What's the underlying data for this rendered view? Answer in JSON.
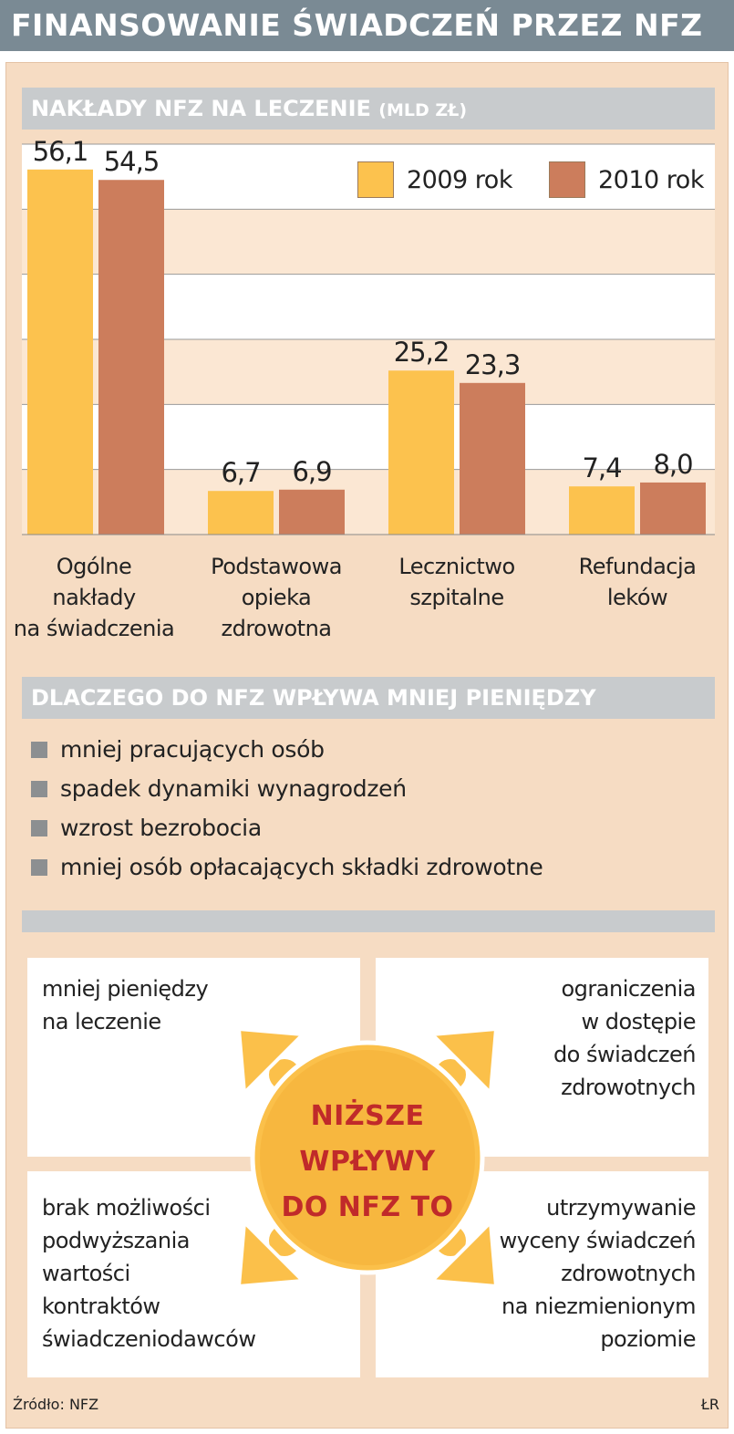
{
  "title": "FINANSOWANIE ŚWIADCZEŃ PRZEZ NFZ",
  "chart_section": {
    "heading": "NAKŁADY NFZ NA LECZENIE",
    "unit": "(MLD ZŁ)"
  },
  "legend": {
    "series_2009": "2009 rok",
    "series_2010": "2010 rok"
  },
  "colors": {
    "banner": "#7a8a94",
    "series_2009": "#fcc24e",
    "series_2010": "#cc7d5c",
    "accent_text": "#c02a2a",
    "arrow": "#fbc04a"
  },
  "chart_data": {
    "type": "bar",
    "title": "NAKŁADY NFZ NA LECZENIE (MLD ZŁ)",
    "xlabel": "",
    "ylabel": "",
    "ylim": [
      0,
      60
    ],
    "grid": true,
    "legend_position": "top-right",
    "categories": [
      "Ogólne nakłady na świadczenia",
      "Podstawowa opieka zdrowotna",
      "Lecznictwo szpitalne",
      "Refundacja leków"
    ],
    "category_lines": [
      [
        "Ogólne",
        "nakłady",
        "na świadczenia"
      ],
      [
        "Podstawowa",
        "opieka",
        "zdrowotna"
      ],
      [
        "Lecznictwo",
        "szpitalne"
      ],
      [
        "Refundacja",
        "leków"
      ]
    ],
    "series": [
      {
        "name": "2009 rok",
        "values": [
          56.1,
          6.7,
          25.2,
          7.4
        ],
        "labels": [
          "56,1",
          "6,7",
          "25,2",
          "7,4"
        ]
      },
      {
        "name": "2010 rok",
        "values": [
          54.5,
          6.9,
          23.3,
          8.0
        ],
        "labels": [
          "54,5",
          "6,9",
          "23,3",
          "8,0"
        ]
      }
    ]
  },
  "reasons_section": {
    "heading": "DLACZEGO DO NFZ WPŁYWA MNIEJ PIENIĘDZY",
    "items": [
      "mniej pracujących osób",
      "spadek dynamiki wynagrodzeń",
      "wzrost bezrobocia",
      "mniej osób opłacających składki zdrowotne"
    ]
  },
  "effects": {
    "center": [
      "NIŻSZE",
      "WPŁYWY",
      "DO NFZ TO"
    ],
    "top_left": [
      "mniej pieniędzy",
      "na leczenie"
    ],
    "top_right": [
      "ograniczenia",
      "w dostępie",
      "do świadczeń",
      "zdrowotnych"
    ],
    "bottom_left": [
      "brak możliwości",
      "podwyższania",
      "wartości",
      "kontraktów",
      "świadczeniodawców"
    ],
    "bottom_right": [
      "utrzymywanie",
      "wyceny świadczeń",
      "zdrowotnych",
      "na niezmienionym",
      "poziomie"
    ]
  },
  "footer": {
    "source": "Źródło: NFZ",
    "author": "ŁR"
  }
}
